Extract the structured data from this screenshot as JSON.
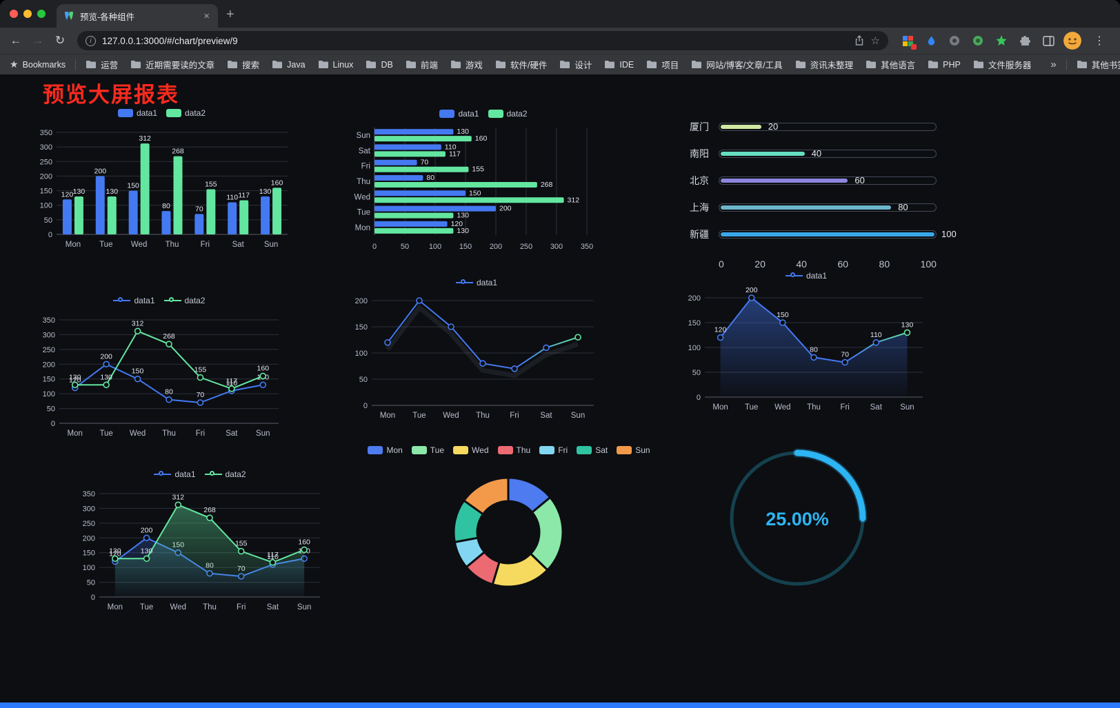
{
  "browser": {
    "tab_title": "预览-各种组件",
    "url": "127.0.0.1:3000/#/chart/preview/9",
    "bookmarks_label": "Bookmarks",
    "bookmarks": [
      "运营",
      "近期需要读的文章",
      "搜索",
      "Java",
      "Linux",
      "DB",
      "前端",
      "游戏",
      "软件/硬件",
      "设计",
      "IDE",
      "项目",
      "网站/博客/文章/工具",
      "资讯未整理",
      "其他语言",
      "PHP",
      "文件服务器"
    ],
    "other_bookmarks": "其他书签"
  },
  "icons": {
    "back": "←",
    "forward": "→",
    "reload": "↻",
    "info": "i",
    "star": "☆",
    "menu": "⋮",
    "close": "×",
    "new_tab": "+",
    "overflow": "»",
    "bookmarks_star": "★"
  },
  "page": {
    "title": "预览大屏报表",
    "title_color": "#fb2a1e",
    "background": "#0c0e12",
    "footer_accent_color": "#2e7bff"
  },
  "chart_data": [
    {
      "id": "bar-grouped",
      "type": "bar",
      "categories": [
        "Mon",
        "Tue",
        "Wed",
        "Thu",
        "Fri",
        "Sat",
        "Sun"
      ],
      "series": [
        {
          "name": "data1",
          "color": "#4479F2",
          "values": [
            120,
            200,
            150,
            80,
            70,
            110,
            130
          ]
        },
        {
          "name": "data2",
          "color": "#63E6A0",
          "values": [
            130,
            130,
            312,
            268,
            155,
            117,
            160
          ]
        }
      ],
      "ylim": [
        0,
        350
      ],
      "yticks": [
        0,
        50,
        100,
        150,
        200,
        250,
        300,
        350
      ],
      "legend_position": "top",
      "grid": true,
      "value_labels": true
    },
    {
      "id": "bar-horizontal",
      "type": "bar",
      "orientation": "horizontal",
      "categories": [
        "Mon",
        "Tue",
        "Wed",
        "Thu",
        "Fri",
        "Sat",
        "Sun"
      ],
      "series": [
        {
          "name": "data1",
          "color": "#4479F2",
          "values": [
            120,
            200,
            150,
            80,
            70,
            110,
            130
          ]
        },
        {
          "name": "data2",
          "color": "#63E6A0",
          "values": [
            130,
            130,
            312,
            268,
            155,
            117,
            160
          ]
        }
      ],
      "xlim": [
        0,
        350
      ],
      "xticks": [
        0,
        50,
        100,
        150,
        200,
        250,
        300,
        350
      ],
      "legend_position": "top",
      "grid": true,
      "value_labels": true
    },
    {
      "id": "progress",
      "type": "bar",
      "subtype": "progress-bars",
      "max": 100,
      "axis_ticks": [
        0,
        20,
        40,
        60,
        80,
        100
      ],
      "items": [
        {
          "label": "厦门",
          "value": 20,
          "color": "#CFE7A2"
        },
        {
          "label": "南阳",
          "value": 40,
          "color": "#66DFC0"
        },
        {
          "label": "北京",
          "value": 60,
          "color": "#8D86E0"
        },
        {
          "label": "上海",
          "value": 80,
          "color": "#6CB7CC"
        },
        {
          "label": "新疆",
          "value": 100,
          "color": "#3AA8E8"
        }
      ]
    },
    {
      "id": "line-two",
      "type": "line",
      "categories": [
        "Mon",
        "Tue",
        "Wed",
        "Thu",
        "Fri",
        "Sat",
        "Sun"
      ],
      "series": [
        {
          "name": "data1",
          "color": "#4479F2",
          "values": [
            120,
            200,
            150,
            80,
            70,
            110,
            130
          ]
        },
        {
          "name": "data2",
          "color": "#63E6A0",
          "values": [
            130,
            130,
            312,
            268,
            155,
            117,
            160
          ]
        }
      ],
      "ylim": [
        0,
        350
      ],
      "yticks": [
        0,
        50,
        100,
        150,
        200,
        250,
        300,
        350
      ],
      "legend_position": "top",
      "grid": true,
      "value_labels": true
    },
    {
      "id": "line-single",
      "type": "line",
      "categories": [
        "Mon",
        "Tue",
        "Wed",
        "Thu",
        "Fri",
        "Sat",
        "Sun"
      ],
      "series": [
        {
          "name": "data1",
          "color": "#4479F2",
          "color_end": "#63E6A0",
          "values": [
            120,
            200,
            150,
            80,
            70,
            110,
            130
          ]
        }
      ],
      "ylim": [
        0,
        200
      ],
      "yticks": [
        0,
        50,
        100,
        150,
        200
      ],
      "legend_position": "top",
      "grid": true,
      "value_labels": false
    },
    {
      "id": "area-single",
      "type": "area",
      "categories": [
        "Mon",
        "Tue",
        "Wed",
        "Thu",
        "Fri",
        "Sat",
        "Sun"
      ],
      "series": [
        {
          "name": "data1",
          "color": "#4479F2",
          "color_end": "#63E6A0",
          "area": true,
          "area_opacity": 0.45,
          "values": [
            120,
            200,
            150,
            80,
            70,
            110,
            130
          ]
        }
      ],
      "ylim": [
        0,
        200
      ],
      "yticks": [
        0,
        50,
        100,
        150,
        200
      ],
      "legend_position": "top",
      "grid": true,
      "value_labels": true
    },
    {
      "id": "area-two",
      "type": "area",
      "categories": [
        "Mon",
        "Tue",
        "Wed",
        "Thu",
        "Fri",
        "Sat",
        "Sun"
      ],
      "series": [
        {
          "name": "data1",
          "color": "#4479F2",
          "area": true,
          "area_opacity": 0.25,
          "values": [
            120,
            200,
            150,
            80,
            70,
            110,
            130
          ]
        },
        {
          "name": "data2",
          "color": "#63E6A0",
          "area": true,
          "area_opacity": 0.4,
          "values": [
            130,
            130,
            312,
            268,
            155,
            117,
            160
          ]
        }
      ],
      "ylim": [
        0,
        350
      ],
      "yticks": [
        0,
        50,
        100,
        150,
        200,
        250,
        300,
        350
      ],
      "legend_position": "top",
      "grid": true,
      "value_labels": true
    },
    {
      "id": "donut",
      "type": "pie",
      "inner_ratio": 0.57,
      "legend_position": "top",
      "slices": [
        {
          "label": "Mon",
          "value": 120,
          "color": "#4E7BF0"
        },
        {
          "label": "Tue",
          "value": 200,
          "color": "#8BE8A8"
        },
        {
          "label": "Wed",
          "value": 150,
          "color": "#F6D95F"
        },
        {
          "label": "Thu",
          "value": 80,
          "color": "#EC6A72"
        },
        {
          "label": "Fri",
          "value": 70,
          "color": "#82D6F2"
        },
        {
          "label": "Sat",
          "value": 110,
          "color": "#2FC3A2"
        },
        {
          "label": "Sun",
          "value": 130,
          "color": "#F29A4A"
        }
      ]
    },
    {
      "id": "gauge",
      "type": "gauge",
      "percent": 25,
      "label": "25.00%",
      "color": "#2DB4F2",
      "track_color": "#15414E"
    }
  ]
}
